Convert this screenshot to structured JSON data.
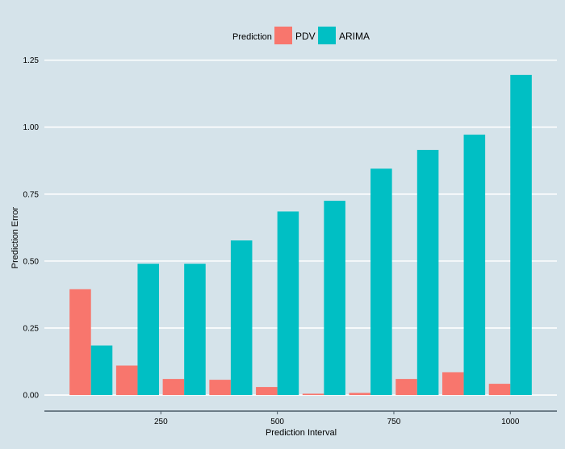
{
  "chart_data": {
    "type": "bar",
    "title": "",
    "xlabel": "Prediction Interval",
    "ylabel": "Prediction Error",
    "legend_title": "Prediction",
    "legend_position": "top",
    "grid": true,
    "x": [
      100,
      200,
      300,
      400,
      500,
      600,
      700,
      800,
      900,
      1000
    ],
    "xlim": [
      0,
      1100
    ],
    "ylim": [
      -0.06,
      1.3
    ],
    "x_ticks": [
      250,
      500,
      750,
      1000
    ],
    "x_tick_labels": [
      "250",
      "500",
      "750",
      "1000"
    ],
    "y_ticks": [
      0,
      0.25,
      0.5,
      0.75,
      1.0,
      1.25
    ],
    "y_tick_labels": [
      "0.00",
      "0.25",
      "0.50",
      "0.75",
      "1.00",
      "1.25"
    ],
    "series": [
      {
        "name": "PDV",
        "color": "#f8766d",
        "values": [
          0.395,
          0.11,
          0.06,
          0.057,
          0.03,
          0.005,
          0.008,
          0.06,
          0.085,
          0.042
        ]
      },
      {
        "name": "ARIMA",
        "color": "#00bfc4",
        "values": [
          0.185,
          0.49,
          0.49,
          0.577,
          0.685,
          0.725,
          0.845,
          0.915,
          0.972,
          1.195
        ]
      }
    ]
  }
}
